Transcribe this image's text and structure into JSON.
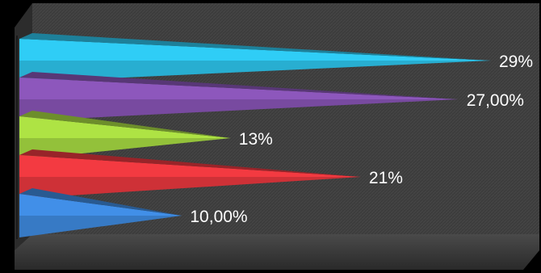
{
  "chart_data": {
    "type": "bar",
    "orientation": "horizontal",
    "style": "3d-cone",
    "categories": [],
    "values": [
      29,
      27,
      13,
      21,
      10
    ],
    "labels": [
      "29%",
      "27,00%",
      "13%",
      "21%",
      "10,00%"
    ],
    "colors": [
      "#2ab7dc",
      "#7e4ea8",
      "#9bcb3d",
      "#d9343a",
      "#3a80cf"
    ],
    "xlim": [
      0,
      29
    ],
    "grid": false,
    "legend": "none",
    "title": "",
    "xlabel": "",
    "ylabel": ""
  }
}
